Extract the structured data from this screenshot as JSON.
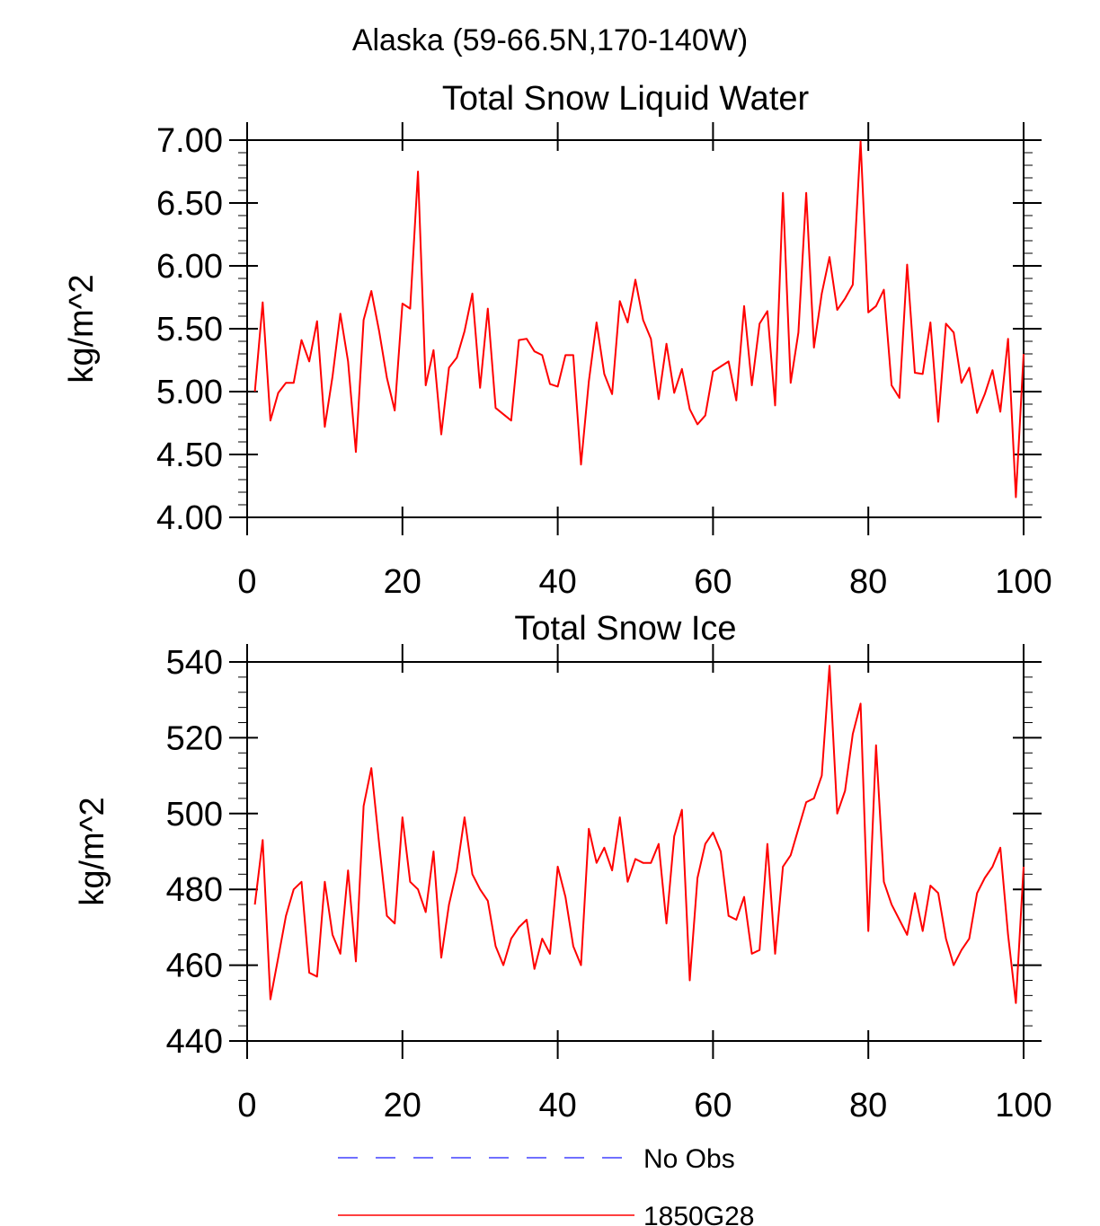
{
  "figure": {
    "title": "Alaska (59-66.5N,170-140W)",
    "legend": [
      {
        "label": "No Obs",
        "color": "#4040ff",
        "dash": true
      },
      {
        "label": "1850G28",
        "color": "#ff0000",
        "dash": false
      }
    ]
  },
  "chart_data": [
    {
      "type": "line",
      "title": "Total Snow Liquid Water",
      "xlabel": "",
      "ylabel": "kg/m^2",
      "xlim": [
        0,
        100
      ],
      "ylim": [
        4.0,
        7.0
      ],
      "xticks": [
        0,
        20,
        40,
        60,
        80,
        100
      ],
      "yticks": [
        4.0,
        4.5,
        5.0,
        5.5,
        6.0,
        6.5,
        7.0
      ],
      "ytick_labels": [
        "4.00",
        "4.50",
        "5.00",
        "5.50",
        "6.00",
        "6.50",
        "7.00"
      ],
      "x_start": 1,
      "series": [
        {
          "name": "1850G28",
          "color": "#ff0000",
          "values": [
            5.0,
            5.71,
            4.77,
            4.99,
            5.07,
            5.07,
            5.41,
            5.24,
            5.56,
            4.72,
            5.12,
            5.62,
            5.24,
            4.52,
            5.57,
            5.8,
            5.48,
            5.11,
            4.85,
            5.7,
            5.66,
            6.75,
            5.05,
            5.33,
            4.66,
            5.19,
            5.27,
            5.48,
            5.78,
            5.03,
            5.66,
            4.87,
            4.82,
            4.77,
            5.41,
            5.42,
            5.32,
            5.29,
            5.06,
            5.04,
            5.29,
            5.29,
            4.42,
            5.08,
            5.55,
            5.14,
            4.98,
            5.72,
            5.55,
            5.89,
            5.57,
            5.42,
            4.94,
            5.38,
            4.99,
            5.18,
            4.86,
            4.74,
            4.81,
            5.16,
            5.2,
            5.24,
            4.93,
            5.68,
            5.05,
            5.54,
            5.64,
            4.89,
            6.58,
            5.07,
            5.47,
            6.58,
            5.35,
            5.78,
            6.07,
            5.65,
            5.74,
            5.85,
            6.99,
            5.63,
            5.68,
            5.81,
            5.05,
            4.95,
            6.01,
            5.15,
            5.14,
            5.55,
            4.76,
            5.54,
            5.47,
            5.07,
            5.19,
            4.83,
            4.98,
            5.17,
            4.84,
            5.42,
            4.16,
            5.3
          ]
        }
      ]
    },
    {
      "type": "line",
      "title": "Total Snow Ice",
      "xlabel": "",
      "ylabel": "kg/m^2",
      "xlim": [
        0,
        100
      ],
      "ylim": [
        440,
        540
      ],
      "xticks": [
        0,
        20,
        40,
        60,
        80,
        100
      ],
      "yticks": [
        440,
        460,
        480,
        500,
        520,
        540
      ],
      "ytick_labels": [
        "440",
        "460",
        "480",
        "500",
        "520",
        "540"
      ],
      "x_start": 1,
      "series": [
        {
          "name": "1850G28",
          "color": "#ff0000",
          "values": [
            476,
            493,
            451,
            462,
            473,
            480,
            482,
            458,
            457,
            482,
            468,
            463,
            485,
            461,
            502,
            512,
            492,
            473,
            471,
            499,
            482,
            480,
            474,
            490,
            462,
            476,
            485,
            499,
            484,
            480,
            477,
            465,
            460,
            467,
            470,
            472,
            459,
            467,
            463,
            486,
            478,
            465,
            460,
            496,
            487,
            491,
            485,
            499,
            482,
            488,
            487,
            487,
            492,
            471,
            494,
            501,
            456,
            483,
            492,
            495,
            490,
            473,
            472,
            478,
            463,
            464,
            492,
            463,
            486,
            489,
            496,
            503,
            504,
            510,
            539,
            500,
            506,
            521,
            529,
            469,
            518,
            482,
            476,
            472,
            468,
            479,
            469,
            481,
            479,
            467,
            460,
            464,
            467,
            479,
            483,
            486,
            491,
            468,
            450,
            486
          ]
        }
      ]
    }
  ]
}
